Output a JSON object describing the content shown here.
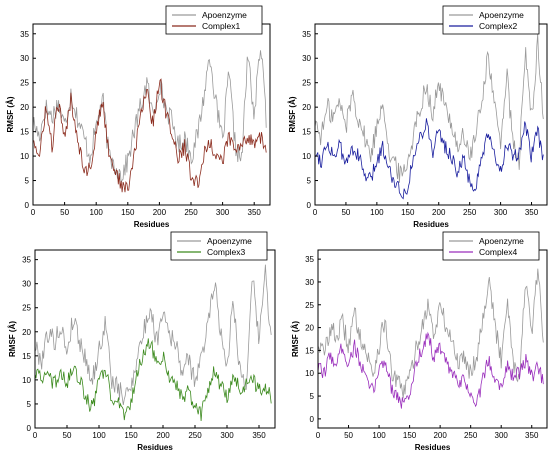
{
  "colors": {
    "apoenzyme": "#9a9a9a",
    "complex1": "#8b2b1d",
    "complex2": "#1a1f9e",
    "complex3": "#3c8a1e",
    "complex4": "#9a2fbc"
  },
  "chart_data": [
    {
      "type": "line",
      "xlabel": "Residues",
      "ylabel": "RMSF (Å)",
      "xlim": [
        0,
        375
      ],
      "ylim": [
        0,
        37
      ],
      "xticks": [
        0,
        50,
        100,
        150,
        200,
        250,
        300,
        350
      ],
      "yticks": [
        0,
        5,
        10,
        15,
        20,
        25,
        30,
        35
      ],
      "legend": "top-right",
      "grid": false,
      "series": [
        {
          "name": "Apoenzyme",
          "color": "#9a9a9a",
          "x": [
            0,
            10,
            20,
            30,
            40,
            50,
            60,
            70,
            80,
            90,
            100,
            110,
            120,
            130,
            140,
            150,
            160,
            170,
            180,
            190,
            200,
            210,
            220,
            230,
            240,
            250,
            260,
            270,
            280,
            290,
            300,
            310,
            320,
            330,
            340,
            350,
            360,
            370
          ],
          "y": [
            17,
            14,
            20,
            18,
            21,
            16,
            23,
            18,
            14,
            10,
            16,
            22,
            10,
            8,
            6,
            9,
            15,
            20,
            25,
            18,
            25,
            20,
            17,
            12,
            14,
            10,
            14,
            22,
            31,
            20,
            13,
            27,
            12,
            9,
            31,
            18,
            33,
            16
          ]
        },
        {
          "name": "Complex1",
          "color": "#8b2b1d",
          "x": [
            0,
            10,
            20,
            30,
            40,
            50,
            60,
            70,
            80,
            90,
            100,
            110,
            120,
            130,
            140,
            150,
            160,
            170,
            180,
            190,
            200,
            210,
            220,
            230,
            240,
            250,
            260,
            270,
            280,
            290,
            300,
            310,
            320,
            330,
            340,
            350,
            360,
            370
          ],
          "y": [
            14,
            9,
            20,
            12,
            21,
            13,
            22,
            14,
            8,
            7,
            15,
            21,
            11,
            7,
            4,
            3,
            10,
            18,
            24,
            16,
            26,
            19,
            15,
            9,
            12,
            6,
            4,
            10,
            13,
            10,
            9,
            14,
            11,
            12,
            14,
            13,
            14,
            11
          ]
        }
      ]
    },
    {
      "type": "line",
      "xlabel": "Residues",
      "ylabel": "RMSF (Å)",
      "xlim": [
        0,
        375
      ],
      "ylim": [
        0,
        37
      ],
      "xticks": [
        0,
        50,
        100,
        150,
        200,
        250,
        300,
        350
      ],
      "yticks": [
        0,
        5,
        10,
        15,
        20,
        25,
        30,
        35
      ],
      "legend": "top-right",
      "grid": false,
      "series": [
        {
          "name": "Apoenzyme",
          "color": "#9a9a9a",
          "x": [
            0,
            10,
            20,
            30,
            40,
            50,
            60,
            70,
            80,
            90,
            100,
            110,
            120,
            130,
            140,
            150,
            160,
            170,
            180,
            190,
            200,
            210,
            220,
            230,
            240,
            250,
            260,
            270,
            280,
            290,
            300,
            310,
            320,
            330,
            340,
            350,
            360,
            370
          ],
          "y": [
            17,
            14,
            20,
            18,
            21,
            16,
            23,
            18,
            14,
            10,
            16,
            22,
            10,
            8,
            6,
            9,
            15,
            20,
            25,
            18,
            25,
            20,
            17,
            12,
            14,
            10,
            14,
            22,
            31,
            20,
            13,
            27,
            12,
            9,
            31,
            18,
            33,
            16
          ]
        },
        {
          "name": "Complex2",
          "color": "#1a1f9e",
          "x": [
            0,
            10,
            20,
            30,
            40,
            50,
            60,
            70,
            80,
            90,
            100,
            110,
            120,
            130,
            140,
            150,
            160,
            170,
            180,
            190,
            200,
            210,
            220,
            230,
            240,
            250,
            260,
            270,
            280,
            290,
            300,
            310,
            320,
            330,
            340,
            350,
            360,
            370
          ],
          "y": [
            11,
            9,
            13,
            10,
            12,
            8,
            12,
            10,
            6,
            5,
            9,
            12,
            7,
            5,
            2,
            4,
            10,
            14,
            17,
            11,
            15,
            12,
            10,
            7,
            9,
            5,
            3,
            10,
            14,
            10,
            7,
            13,
            9,
            11,
            16,
            10,
            15,
            9
          ]
        }
      ]
    },
    {
      "type": "line",
      "xlabel": "Residues",
      "ylabel": "RMSF (Å)",
      "xlim": [
        0,
        375
      ],
      "ylim": [
        0,
        37
      ],
      "xticks": [
        0,
        50,
        100,
        150,
        200,
        250,
        300,
        350
      ],
      "yticks": [
        0,
        5,
        10,
        15,
        20,
        25,
        30,
        35
      ],
      "legend": "top-right",
      "grid": false,
      "series": [
        {
          "name": "Apoenzyme",
          "color": "#9a9a9a",
          "x": [
            0,
            10,
            20,
            30,
            40,
            50,
            60,
            70,
            80,
            90,
            100,
            110,
            120,
            130,
            140,
            150,
            160,
            170,
            180,
            190,
            200,
            210,
            220,
            230,
            240,
            250,
            260,
            270,
            280,
            290,
            300,
            310,
            320,
            330,
            340,
            350,
            360,
            370
          ],
          "y": [
            17,
            14,
            20,
            18,
            21,
            16,
            23,
            18,
            14,
            10,
            16,
            22,
            10,
            8,
            6,
            9,
            15,
            20,
            25,
            18,
            25,
            20,
            17,
            12,
            14,
            10,
            14,
            22,
            31,
            20,
            13,
            27,
            12,
            9,
            31,
            18,
            33,
            16
          ]
        },
        {
          "name": "Complex3",
          "color": "#3c8a1e",
          "x": [
            0,
            10,
            20,
            30,
            40,
            50,
            60,
            70,
            80,
            90,
            100,
            110,
            120,
            130,
            140,
            150,
            160,
            170,
            180,
            190,
            200,
            210,
            220,
            230,
            240,
            250,
            260,
            270,
            280,
            290,
            300,
            310,
            320,
            330,
            340,
            350,
            360,
            370
          ],
          "y": [
            12,
            10,
            11,
            9,
            12,
            9,
            13,
            10,
            6,
            4,
            10,
            12,
            6,
            5,
            3,
            5,
            12,
            15,
            18,
            13,
            15,
            11,
            9,
            6,
            8,
            4,
            3,
            8,
            12,
            9,
            6,
            11,
            8,
            9,
            10,
            8,
            9,
            6
          ]
        }
      ]
    },
    {
      "type": "line",
      "xlabel": "Residues",
      "ylabel": "RMSF (Å)",
      "xlim": [
        0,
        375
      ],
      "ylim": [
        -2,
        37
      ],
      "xticks": [
        0,
        50,
        100,
        150,
        200,
        250,
        300,
        350
      ],
      "yticks": [
        0,
        5,
        10,
        15,
        20,
        25,
        30,
        35
      ],
      "legend": "top-right",
      "grid": false,
      "series": [
        {
          "name": "Apoenzyme",
          "color": "#9a9a9a",
          "x": [
            0,
            10,
            20,
            30,
            40,
            50,
            60,
            70,
            80,
            90,
            100,
            110,
            120,
            130,
            140,
            150,
            160,
            170,
            180,
            190,
            200,
            210,
            220,
            230,
            240,
            250,
            260,
            270,
            280,
            290,
            300,
            310,
            320,
            330,
            340,
            350,
            360,
            370
          ],
          "y": [
            17,
            14,
            20,
            18,
            21,
            16,
            23,
            18,
            14,
            10,
            16,
            22,
            10,
            8,
            6,
            9,
            15,
            20,
            25,
            18,
            25,
            20,
            17,
            12,
            14,
            10,
            14,
            22,
            31,
            20,
            13,
            27,
            12,
            9,
            31,
            18,
            33,
            16
          ]
        },
        {
          "name": "Complex4",
          "color": "#9a2fbc",
          "x": [
            0,
            10,
            20,
            30,
            40,
            50,
            60,
            70,
            80,
            90,
            100,
            110,
            120,
            130,
            140,
            150,
            160,
            170,
            180,
            190,
            200,
            210,
            220,
            230,
            240,
            250,
            260,
            270,
            280,
            290,
            300,
            310,
            320,
            330,
            340,
            350,
            360,
            370
          ],
          "y": [
            11,
            10,
            14,
            12,
            16,
            12,
            16,
            12,
            8,
            6,
            11,
            13,
            7,
            5,
            3,
            5,
            12,
            15,
            19,
            13,
            16,
            12,
            10,
            7,
            9,
            5,
            3,
            9,
            13,
            9,
            7,
            12,
            9,
            10,
            13,
            9,
            12,
            7
          ]
        }
      ]
    }
  ]
}
